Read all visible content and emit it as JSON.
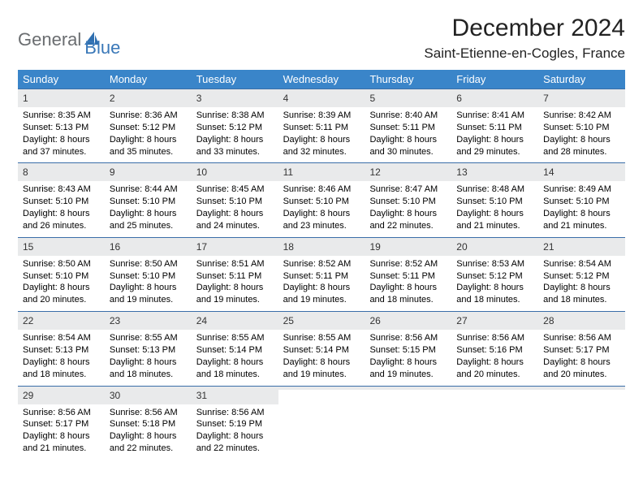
{
  "logo": {
    "text1": "General",
    "text2": "Blue"
  },
  "title": "December 2024",
  "location": "Saint-Etienne-en-Cogles, France",
  "colors": {
    "header_bg": "#3a85c9",
    "header_text": "#ffffff",
    "daynum_bg": "#e9eaeb",
    "cell_border_top": "#3a6ea8",
    "logo_gray": "#6a6d70",
    "logo_blue": "#3a78b8"
  },
  "day_names": [
    "Sunday",
    "Monday",
    "Tuesday",
    "Wednesday",
    "Thursday",
    "Friday",
    "Saturday"
  ],
  "weeks": [
    [
      {
        "n": "1",
        "sr": "Sunrise: 8:35 AM",
        "ss": "Sunset: 5:13 PM",
        "d1": "Daylight: 8 hours",
        "d2": "and 37 minutes."
      },
      {
        "n": "2",
        "sr": "Sunrise: 8:36 AM",
        "ss": "Sunset: 5:12 PM",
        "d1": "Daylight: 8 hours",
        "d2": "and 35 minutes."
      },
      {
        "n": "3",
        "sr": "Sunrise: 8:38 AM",
        "ss": "Sunset: 5:12 PM",
        "d1": "Daylight: 8 hours",
        "d2": "and 33 minutes."
      },
      {
        "n": "4",
        "sr": "Sunrise: 8:39 AM",
        "ss": "Sunset: 5:11 PM",
        "d1": "Daylight: 8 hours",
        "d2": "and 32 minutes."
      },
      {
        "n": "5",
        "sr": "Sunrise: 8:40 AM",
        "ss": "Sunset: 5:11 PM",
        "d1": "Daylight: 8 hours",
        "d2": "and 30 minutes."
      },
      {
        "n": "6",
        "sr": "Sunrise: 8:41 AM",
        "ss": "Sunset: 5:11 PM",
        "d1": "Daylight: 8 hours",
        "d2": "and 29 minutes."
      },
      {
        "n": "7",
        "sr": "Sunrise: 8:42 AM",
        "ss": "Sunset: 5:10 PM",
        "d1": "Daylight: 8 hours",
        "d2": "and 28 minutes."
      }
    ],
    [
      {
        "n": "8",
        "sr": "Sunrise: 8:43 AM",
        "ss": "Sunset: 5:10 PM",
        "d1": "Daylight: 8 hours",
        "d2": "and 26 minutes."
      },
      {
        "n": "9",
        "sr": "Sunrise: 8:44 AM",
        "ss": "Sunset: 5:10 PM",
        "d1": "Daylight: 8 hours",
        "d2": "and 25 minutes."
      },
      {
        "n": "10",
        "sr": "Sunrise: 8:45 AM",
        "ss": "Sunset: 5:10 PM",
        "d1": "Daylight: 8 hours",
        "d2": "and 24 minutes."
      },
      {
        "n": "11",
        "sr": "Sunrise: 8:46 AM",
        "ss": "Sunset: 5:10 PM",
        "d1": "Daylight: 8 hours",
        "d2": "and 23 minutes."
      },
      {
        "n": "12",
        "sr": "Sunrise: 8:47 AM",
        "ss": "Sunset: 5:10 PM",
        "d1": "Daylight: 8 hours",
        "d2": "and 22 minutes."
      },
      {
        "n": "13",
        "sr": "Sunrise: 8:48 AM",
        "ss": "Sunset: 5:10 PM",
        "d1": "Daylight: 8 hours",
        "d2": "and 21 minutes."
      },
      {
        "n": "14",
        "sr": "Sunrise: 8:49 AM",
        "ss": "Sunset: 5:10 PM",
        "d1": "Daylight: 8 hours",
        "d2": "and 21 minutes."
      }
    ],
    [
      {
        "n": "15",
        "sr": "Sunrise: 8:50 AM",
        "ss": "Sunset: 5:10 PM",
        "d1": "Daylight: 8 hours",
        "d2": "and 20 minutes."
      },
      {
        "n": "16",
        "sr": "Sunrise: 8:50 AM",
        "ss": "Sunset: 5:10 PM",
        "d1": "Daylight: 8 hours",
        "d2": "and 19 minutes."
      },
      {
        "n": "17",
        "sr": "Sunrise: 8:51 AM",
        "ss": "Sunset: 5:11 PM",
        "d1": "Daylight: 8 hours",
        "d2": "and 19 minutes."
      },
      {
        "n": "18",
        "sr": "Sunrise: 8:52 AM",
        "ss": "Sunset: 5:11 PM",
        "d1": "Daylight: 8 hours",
        "d2": "and 19 minutes."
      },
      {
        "n": "19",
        "sr": "Sunrise: 8:52 AM",
        "ss": "Sunset: 5:11 PM",
        "d1": "Daylight: 8 hours",
        "d2": "and 18 minutes."
      },
      {
        "n": "20",
        "sr": "Sunrise: 8:53 AM",
        "ss": "Sunset: 5:12 PM",
        "d1": "Daylight: 8 hours",
        "d2": "and 18 minutes."
      },
      {
        "n": "21",
        "sr": "Sunrise: 8:54 AM",
        "ss": "Sunset: 5:12 PM",
        "d1": "Daylight: 8 hours",
        "d2": "and 18 minutes."
      }
    ],
    [
      {
        "n": "22",
        "sr": "Sunrise: 8:54 AM",
        "ss": "Sunset: 5:13 PM",
        "d1": "Daylight: 8 hours",
        "d2": "and 18 minutes."
      },
      {
        "n": "23",
        "sr": "Sunrise: 8:55 AM",
        "ss": "Sunset: 5:13 PM",
        "d1": "Daylight: 8 hours",
        "d2": "and 18 minutes."
      },
      {
        "n": "24",
        "sr": "Sunrise: 8:55 AM",
        "ss": "Sunset: 5:14 PM",
        "d1": "Daylight: 8 hours",
        "d2": "and 18 minutes."
      },
      {
        "n": "25",
        "sr": "Sunrise: 8:55 AM",
        "ss": "Sunset: 5:14 PM",
        "d1": "Daylight: 8 hours",
        "d2": "and 19 minutes."
      },
      {
        "n": "26",
        "sr": "Sunrise: 8:56 AM",
        "ss": "Sunset: 5:15 PM",
        "d1": "Daylight: 8 hours",
        "d2": "and 19 minutes."
      },
      {
        "n": "27",
        "sr": "Sunrise: 8:56 AM",
        "ss": "Sunset: 5:16 PM",
        "d1": "Daylight: 8 hours",
        "d2": "and 20 minutes."
      },
      {
        "n": "28",
        "sr": "Sunrise: 8:56 AM",
        "ss": "Sunset: 5:17 PM",
        "d1": "Daylight: 8 hours",
        "d2": "and 20 minutes."
      }
    ],
    [
      {
        "n": "29",
        "sr": "Sunrise: 8:56 AM",
        "ss": "Sunset: 5:17 PM",
        "d1": "Daylight: 8 hours",
        "d2": "and 21 minutes."
      },
      {
        "n": "30",
        "sr": "Sunrise: 8:56 AM",
        "ss": "Sunset: 5:18 PM",
        "d1": "Daylight: 8 hours",
        "d2": "and 22 minutes."
      },
      {
        "n": "31",
        "sr": "Sunrise: 8:56 AM",
        "ss": "Sunset: 5:19 PM",
        "d1": "Daylight: 8 hours",
        "d2": "and 22 minutes."
      },
      {
        "empty": true
      },
      {
        "empty": true
      },
      {
        "empty": true
      },
      {
        "empty": true
      }
    ]
  ]
}
